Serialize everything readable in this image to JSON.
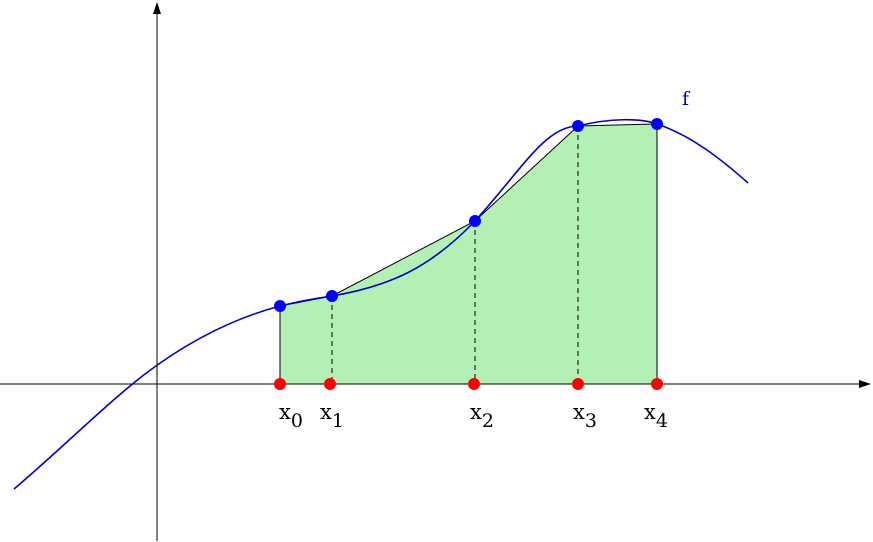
{
  "function_label": "f",
  "colors": {
    "curve": "#0000cc",
    "curve_points": "#0000ff",
    "axis_points": "#ff0000",
    "fill": "#b3f0b3",
    "axes": "#000000"
  },
  "nodes": [
    {
      "base": "x",
      "sub": "0"
    },
    {
      "base": "x",
      "sub": "1"
    },
    {
      "base": "x",
      "sub": "2"
    },
    {
      "base": "x",
      "sub": "3"
    },
    {
      "base": "x",
      "sub": "4"
    }
  ]
}
